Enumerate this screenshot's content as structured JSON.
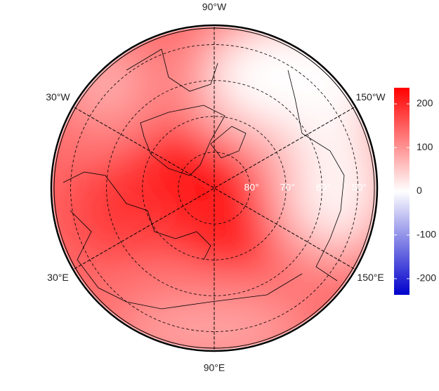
{
  "chart_data": {
    "type": "polar-map",
    "latlim": [
      45,
      90
    ],
    "lon_labels": [
      {
        "value": -90,
        "label": "90°W"
      },
      {
        "value": -30,
        "label": "30°W"
      },
      {
        "value": -150,
        "label": "150°W"
      },
      {
        "value": 30,
        "label": "30°E"
      },
      {
        "value": 150,
        "label": "150°E"
      },
      {
        "value": 90,
        "label": "90°E"
      }
    ],
    "lat_labels": [
      {
        "value": 80,
        "label": "80°"
      },
      {
        "value": 70,
        "label": "70°"
      },
      {
        "value": 60,
        "label": "60°"
      },
      {
        "value": 50,
        "label": "50°"
      }
    ],
    "colorbar": {
      "lim": [
        -237,
        237
      ],
      "ticks": [
        -200,
        -100,
        0,
        100,
        200
      ],
      "colors": [
        "#0000cc",
        "#ffffff",
        "#ff0000"
      ]
    }
  }
}
